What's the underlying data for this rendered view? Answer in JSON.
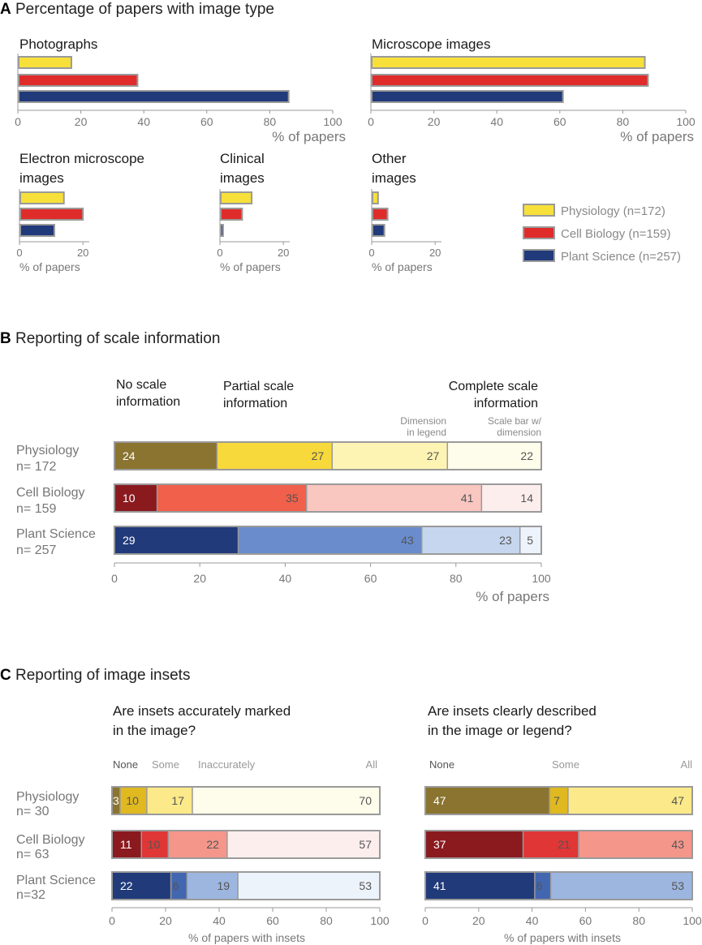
{
  "colors": {
    "physiology": [
      "#8a7430",
      "#f7d93c",
      "#fdf4b4",
      "#fefcea"
    ],
    "cell_biology": [
      "#8b1a1f",
      "#f0604a",
      "#f9c6c0",
      "#fdeeee"
    ],
    "plant_science": [
      "#203a7a",
      "#6a8ccc",
      "#c6d6ee",
      "#edf3fb"
    ],
    "inset_physiology": [
      "#8a7430",
      "#e0b820",
      "#fbe98a",
      "#fefcea"
    ],
    "inset_cell_biology": [
      "#8b1a1f",
      "#e03636",
      "#f4968a",
      "#fdeeee"
    ],
    "inset_plant_science": [
      "#203a7a",
      "#4266b0",
      "#9cb6e0",
      "#edf3fb"
    ],
    "bar_yellow": "#f7e03a",
    "bar_red": "#e02b2b",
    "bar_blue": "#203a7a",
    "border": "#a0a0a0"
  },
  "sectionA": {
    "letter": "A",
    "title": "Percentage of papers with image type",
    "axis_label": "% of papers",
    "legend": [
      {
        "label": "Physiology (n=172)",
        "color_key": "bar_yellow"
      },
      {
        "label": "Cell Biology (n=159)",
        "color_key": "bar_red"
      },
      {
        "label": "Plant Science (n=257)",
        "color_key": "bar_blue"
      }
    ]
  },
  "sectionB": {
    "letter": "B",
    "title": "Reporting of scale information",
    "headers": {
      "none": [
        "No scale",
        "information"
      ],
      "partial": [
        "Partial scale",
        "information"
      ],
      "complete": [
        "Complete scale",
        "information"
      ],
      "sub_legend": [
        "Dimension",
        "in legend"
      ],
      "sub_scalebar": [
        "Scale bar w/",
        "dimension"
      ]
    },
    "axis_label": "% of papers"
  },
  "sectionC": {
    "letter": "C",
    "title": "Reporting of image insets",
    "left_question": [
      "Are insets accurately marked",
      "in the image?"
    ],
    "right_question": [
      "Are insets clearly described",
      "in the image or legend?"
    ],
    "left_cols": {
      "none": "None",
      "some": "Some",
      "inaccurately": "Inaccurately",
      "all": "All"
    },
    "right_cols": {
      "none": "None",
      "some": "Some",
      "all": "All"
    },
    "axis_label": "% of papers with insets"
  },
  "chart_data": [
    {
      "id": "A-photographs",
      "type": "bar",
      "orientation": "horizontal",
      "title": "Photographs",
      "categories": [
        "Physiology",
        "Cell Biology",
        "Plant Science"
      ],
      "values": [
        17,
        38,
        86
      ],
      "xlim": [
        0,
        100
      ],
      "ticks": [
        0,
        20,
        40,
        60,
        80,
        100
      ],
      "xlabel": "% of papers"
    },
    {
      "id": "A-microscope",
      "type": "bar",
      "orientation": "horizontal",
      "title": "Microscope images",
      "categories": [
        "Physiology",
        "Cell Biology",
        "Plant Science"
      ],
      "values": [
        87,
        88,
        61
      ],
      "xlim": [
        0,
        100
      ],
      "ticks": [
        0,
        20,
        40,
        60,
        80,
        100
      ],
      "xlabel": "% of papers"
    },
    {
      "id": "A-electron",
      "type": "bar",
      "orientation": "horizontal",
      "title": "Electron microscope images",
      "title_lines": [
        "Electron microscope",
        "images"
      ],
      "categories": [
        "Physiology",
        "Cell Biology",
        "Plant Science"
      ],
      "values": [
        14,
        20,
        11
      ],
      "xlim": [
        0,
        22
      ],
      "ticks": [
        0,
        20
      ],
      "xlabel": "% of papers"
    },
    {
      "id": "A-clinical",
      "type": "bar",
      "orientation": "horizontal",
      "title": "Clinical images",
      "title_lines": [
        "Clinical",
        "images"
      ],
      "categories": [
        "Physiology",
        "Cell Biology",
        "Plant Science"
      ],
      "values": [
        10,
        7,
        1
      ],
      "xlim": [
        0,
        22
      ],
      "ticks": [
        0,
        20
      ],
      "xlabel": "% of papers"
    },
    {
      "id": "A-other",
      "type": "bar",
      "orientation": "horizontal",
      "title": "Other images",
      "title_lines": [
        "Other",
        "images"
      ],
      "categories": [
        "Physiology",
        "Cell Biology",
        "Plant Science"
      ],
      "values": [
        2,
        5,
        4
      ],
      "xlim": [
        0,
        22
      ],
      "ticks": [
        0,
        20
      ],
      "xlabel": "% of papers"
    },
    {
      "id": "B-scale",
      "type": "bar",
      "orientation": "horizontal",
      "stacked": true,
      "title": "Reporting of scale information",
      "rows": [
        {
          "label": "Physiology",
          "n": "n= 172",
          "values": [
            24,
            27,
            27,
            22
          ],
          "palette": "physiology"
        },
        {
          "label": "Cell Biology",
          "n": "n= 159",
          "values": [
            10,
            35,
            41,
            14
          ],
          "palette": "cell_biology"
        },
        {
          "label": "Plant Science",
          "n": "n= 257",
          "values": [
            29,
            43,
            23,
            5
          ],
          "palette": "plant_science"
        }
      ],
      "segments": [
        "No scale information",
        "Partial scale information",
        "Dimension in legend",
        "Scale bar w/ dimension"
      ],
      "xlim": [
        0,
        100
      ],
      "ticks": [
        0,
        20,
        40,
        60,
        80,
        100
      ],
      "xlabel": "% of papers"
    },
    {
      "id": "C-marked",
      "type": "bar",
      "orientation": "horizontal",
      "stacked": true,
      "title": "Are insets accurately marked in the image?",
      "rows": [
        {
          "label": "Physiology",
          "n": "n= 30",
          "values": [
            3,
            10,
            17,
            70
          ],
          "palette": "inset_physiology"
        },
        {
          "label": "Cell Biology",
          "n": "n= 63",
          "values": [
            11,
            10,
            22,
            57
          ],
          "palette": "inset_cell_biology"
        },
        {
          "label": "Plant Science",
          "n": "n=32",
          "values": [
            22,
            6,
            19,
            53
          ],
          "palette": "inset_plant_science"
        }
      ],
      "segments": [
        "None",
        "Some",
        "Inaccurately",
        "All"
      ],
      "xlim": [
        0,
        100
      ],
      "ticks": [
        0,
        20,
        40,
        60,
        80,
        100
      ],
      "xlabel": "% of papers with insets"
    },
    {
      "id": "C-described",
      "type": "bar",
      "orientation": "horizontal",
      "stacked": true,
      "title": "Are insets clearly described in the image or legend?",
      "rows": [
        {
          "label": "Physiology",
          "n": "n= 30",
          "values": [
            47,
            7,
            47
          ],
          "palette": "inset_physiology"
        },
        {
          "label": "Cell Biology",
          "n": "n= 63",
          "values": [
            37,
            21,
            43
          ],
          "palette": "inset_cell_biology"
        },
        {
          "label": "Plant Science",
          "n": "n=32",
          "values": [
            41,
            6,
            53
          ],
          "palette": "inset_plant_science"
        }
      ],
      "segments": [
        "None",
        "Some",
        "All"
      ],
      "xlim": [
        0,
        100
      ],
      "ticks": [
        0,
        20,
        40,
        60,
        80,
        100
      ],
      "xlabel": "% of papers with insets"
    }
  ]
}
